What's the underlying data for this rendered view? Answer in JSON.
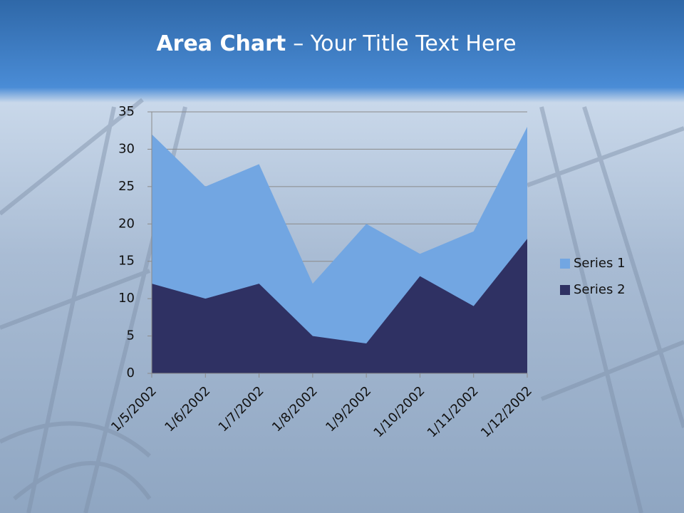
{
  "chart_data": {
    "type": "area",
    "title": {
      "bold": "Area Chart",
      "rest": "– Your Title Text Here"
    },
    "categories": [
      "1/5/2002",
      "1/6/2002",
      "1/7/2002",
      "1/8/2002",
      "1/9/2002",
      "1/10/2002",
      "1/11/2002",
      "1/12/2002"
    ],
    "series": [
      {
        "name": "Series 1",
        "color": "#72a6e2",
        "values": [
          32,
          25,
          28,
          12,
          20,
          16,
          19,
          33
        ]
      },
      {
        "name": "Series 2",
        "color": "#2f3163",
        "values": [
          12,
          10,
          12,
          5,
          4,
          13,
          9,
          18
        ]
      }
    ],
    "ylim": [
      0,
      35
    ],
    "yticks": [
      0,
      5,
      10,
      15,
      20,
      25,
      30,
      35
    ],
    "grid": true,
    "legend": "right"
  }
}
